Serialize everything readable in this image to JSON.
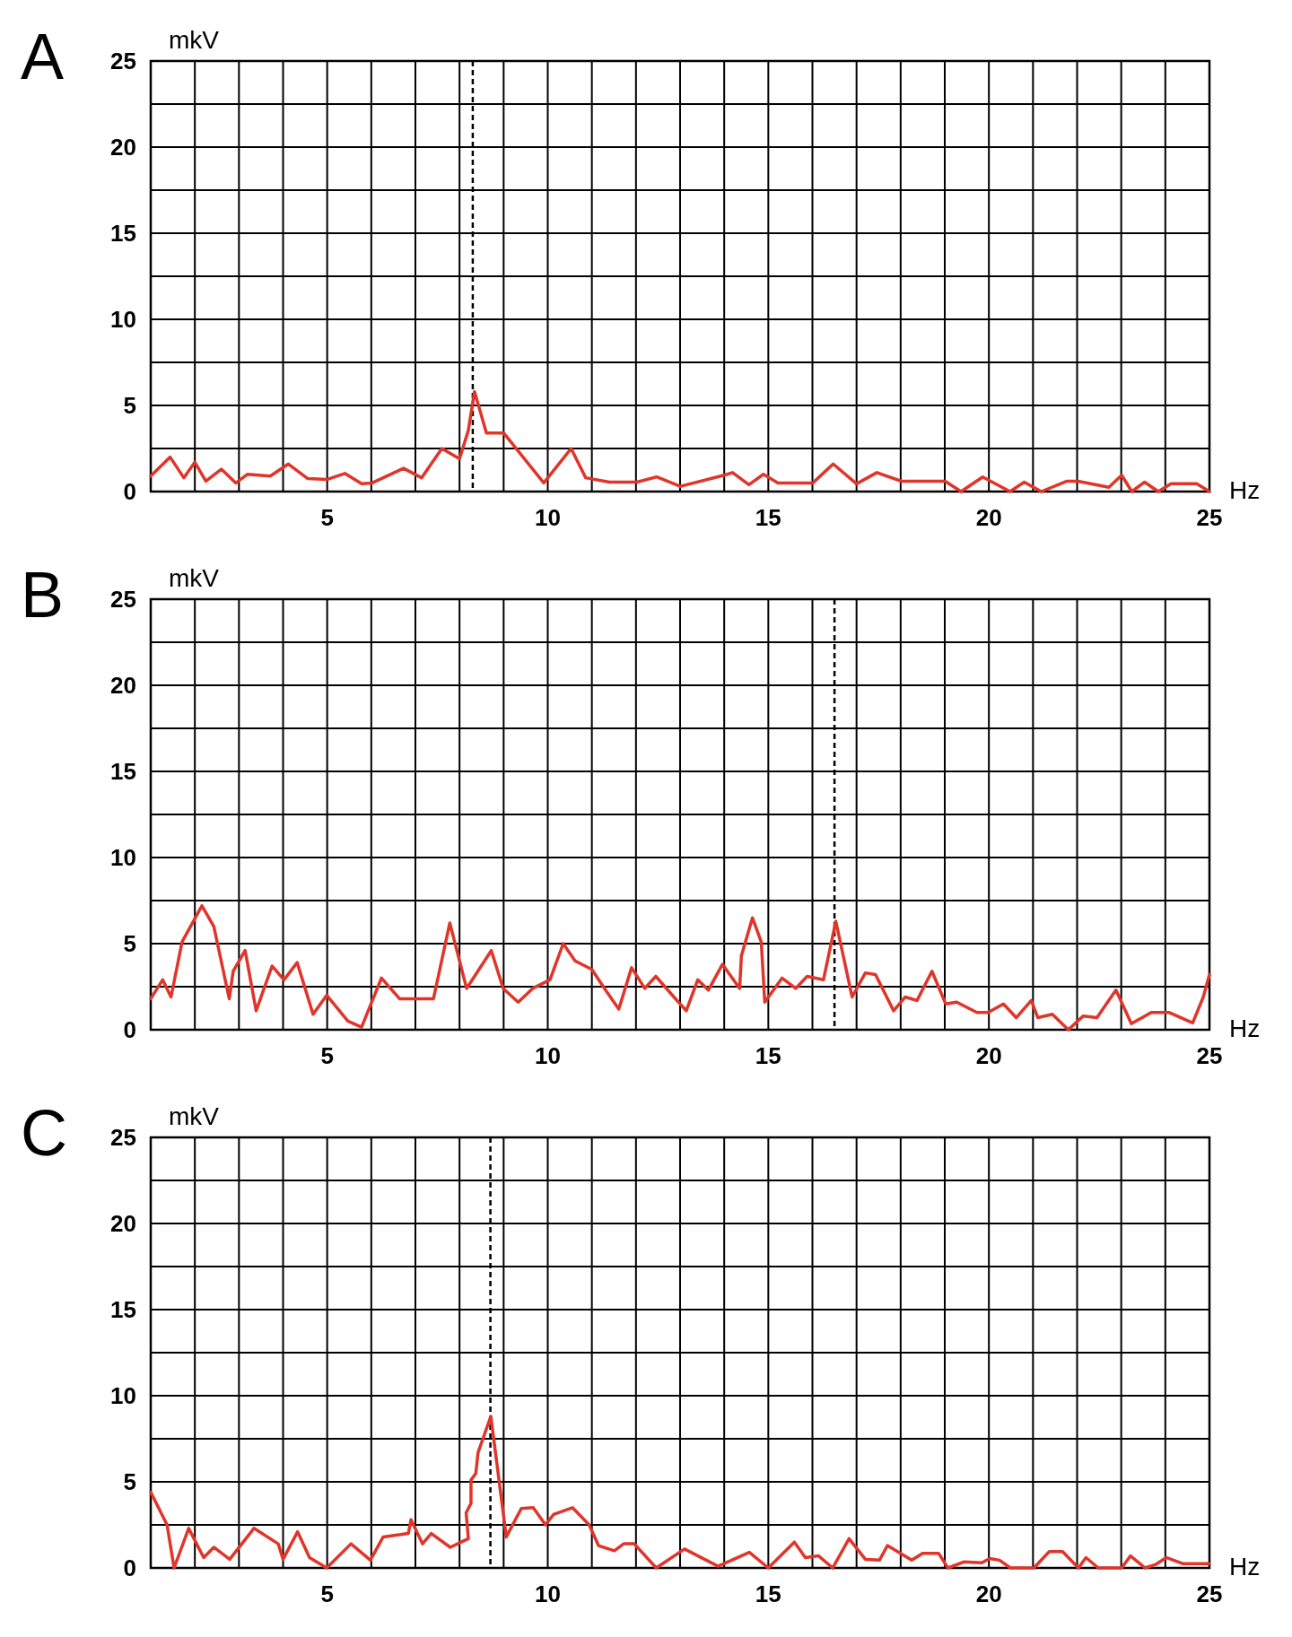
{
  "chart_data": [
    {
      "type": "line",
      "title": "A",
      "xlabel": "Hz",
      "ylabel": "mkV",
      "xlim": [
        1,
        25
      ],
      "ylim": [
        0,
        25
      ],
      "grid": true,
      "xticks": [
        {
          "value": 1,
          "label": null
        },
        {
          "value": 2,
          "label": null
        },
        {
          "value": 3,
          "label": null
        },
        {
          "value": 4,
          "label": null
        },
        5,
        {
          "value": 6,
          "label": null
        },
        {
          "value": 7,
          "label": null
        },
        {
          "value": 8,
          "label": null
        },
        {
          "value": 9,
          "label": null
        },
        10,
        {
          "value": 11,
          "label": null
        },
        {
          "value": 12,
          "label": null
        },
        {
          "value": 13,
          "label": null
        },
        {
          "value": 14,
          "label": null
        },
        15,
        {
          "value": 16,
          "label": null
        },
        {
          "value": 17,
          "label": null
        },
        {
          "value": 18,
          "label": null
        },
        {
          "value": 19,
          "label": null
        },
        20,
        {
          "value": 21,
          "label": null
        },
        {
          "value": 22,
          "label": null
        },
        {
          "value": 23,
          "label": null
        },
        {
          "value": 24,
          "label": null
        },
        25
      ],
      "yticks": [
        0,
        {
          "value": 2.5,
          "label": null
        },
        5,
        {
          "value": 7.5,
          "label": null
        },
        10,
        {
          "value": 12.5,
          "label": null
        },
        15,
        {
          "value": 17.5,
          "label": null
        },
        20,
        {
          "value": 22.5,
          "label": null
        },
        25
      ],
      "ref_lines": [
        {
          "axis": "x",
          "value": 8.3,
          "line_style": "dashed",
          "color": "#000000"
        }
      ],
      "series": [
        {
          "color": "#e0352a",
          "x": [
            1,
            1.44,
            1.75,
            2.0,
            2.25,
            2.6,
            2.93,
            3.19,
            3.71,
            4.12,
            4.56,
            4.99,
            5.4,
            5.78,
            6.02,
            6.73,
            7.14,
            7.6,
            8.0,
            8.2,
            8.34,
            8.61,
            9.0,
            9.91,
            10.53,
            10.86,
            11.4,
            12.02,
            12.47,
            13.0,
            14.0,
            14.19,
            14.56,
            14.89,
            15.22,
            16.01,
            16.47,
            17.0,
            17.46,
            18.02,
            19.01,
            19.37,
            19.86,
            20.48,
            20.8,
            21.19,
            21.77,
            22.02,
            22.72,
            23.01,
            23.24,
            23.53,
            23.84,
            24.13,
            24.71,
            25
          ],
          "values": [
            0.9,
            2.0,
            0.8,
            1.7,
            0.6,
            1.3,
            0.5,
            1.0,
            0.9,
            1.6,
            0.75,
            0.7,
            1.05,
            0.45,
            0.5,
            1.35,
            0.8,
            2.5,
            1.9,
            3.55,
            5.8,
            3.4,
            3.4,
            0.5,
            2.5,
            0.8,
            0.55,
            0.55,
            0.85,
            0.3,
            0.95,
            1.1,
            0.4,
            1.0,
            0.5,
            0.5,
            1.6,
            0.45,
            1.1,
            0.6,
            0.6,
            0,
            0.85,
            0,
            0.55,
            0,
            0.6,
            0.6,
            0.25,
            0.95,
            0,
            0.55,
            0,
            0.45,
            0.45,
            0
          ]
        }
      ]
    },
    {
      "type": "line",
      "title": "B",
      "xlabel": "Hz",
      "ylabel": "mkV",
      "xlim": [
        1,
        25
      ],
      "ylim": [
        0,
        25
      ],
      "grid": true,
      "xticks": [
        {
          "value": 1,
          "label": null
        },
        {
          "value": 2,
          "label": null
        },
        {
          "value": 3,
          "label": null
        },
        {
          "value": 4,
          "label": null
        },
        5,
        {
          "value": 6,
          "label": null
        },
        {
          "value": 7,
          "label": null
        },
        {
          "value": 8,
          "label": null
        },
        {
          "value": 9,
          "label": null
        },
        10,
        {
          "value": 11,
          "label": null
        },
        {
          "value": 12,
          "label": null
        },
        {
          "value": 13,
          "label": null
        },
        {
          "value": 14,
          "label": null
        },
        15,
        {
          "value": 16,
          "label": null
        },
        {
          "value": 17,
          "label": null
        },
        {
          "value": 18,
          "label": null
        },
        {
          "value": 19,
          "label": null
        },
        20,
        {
          "value": 21,
          "label": null
        },
        {
          "value": 22,
          "label": null
        },
        {
          "value": 23,
          "label": null
        },
        {
          "value": 24,
          "label": null
        },
        25
      ],
      "yticks": [
        0,
        {
          "value": 2.5,
          "label": null
        },
        5,
        {
          "value": 7.5,
          "label": null
        },
        10,
        {
          "value": 12.5,
          "label": null
        },
        15,
        {
          "value": 17.5,
          "label": null
        },
        20,
        {
          "value": 22.5,
          "label": null
        },
        25
      ],
      "ref_lines": [
        {
          "axis": "x",
          "value": 16.5,
          "line_style": "dashed",
          "color": "#000000"
        }
      ],
      "series": [
        {
          "color": "#e0352a",
          "x": [
            1,
            1.27,
            1.46,
            1.71,
            2.16,
            2.43,
            2.78,
            2.87,
            3.14,
            3.39,
            3.75,
            4.02,
            4.32,
            4.68,
            4.99,
            5.47,
            5.78,
            6.23,
            6.64,
            7.41,
            7.78,
            8.16,
            8.72,
            8.99,
            9.33,
            9.66,
            10.05,
            10.35,
            10.62,
            11.0,
            11.31,
            11.61,
            11.9,
            12.2,
            12.45,
            12.86,
            13.14,
            13.4,
            13.64,
            13.96,
            14.35,
            14.39,
            14.64,
            14.84,
            14.92,
            15.31,
            15.62,
            15.88,
            16.25,
            16.53,
            16.9,
            17.2,
            17.43,
            17.84,
            18.1,
            18.37,
            18.71,
            19.02,
            19.27,
            19.73,
            19.98,
            20.33,
            20.62,
            20.96,
            21.11,
            21.44,
            21.8,
            22.14,
            22.45,
            22.88,
            23.23,
            23.68,
            24.09,
            24.62,
            24.86,
            25
          ],
          "values": [
            1.8,
            2.9,
            1.9,
            5.1,
            7.2,
            6.0,
            1.8,
            3.4,
            4.6,
            1.1,
            3.7,
            2.9,
            3.9,
            0.9,
            2.0,
            0.5,
            0.15,
            3.0,
            1.8,
            1.8,
            6.2,
            2.4,
            4.6,
            2.4,
            1.6,
            2.4,
            2.9,
            5.0,
            4.0,
            3.5,
            2.3,
            1.2,
            3.6,
            2.4,
            3.1,
            1.9,
            1.1,
            2.9,
            2.3,
            3.8,
            2.4,
            4.3,
            6.5,
            5.1,
            1.6,
            3.0,
            2.4,
            3.1,
            2.9,
            6.3,
            1.9,
            3.3,
            3.2,
            1.1,
            1.9,
            1.7,
            3.4,
            1.5,
            1.6,
            1.0,
            1.0,
            1.5,
            0.7,
            1.7,
            0.7,
            0.9,
            0,
            0.8,
            0.7,
            2.3,
            0.35,
            1.0,
            1.0,
            0.4,
            1.9,
            3.2
          ]
        }
      ]
    },
    {
      "type": "line",
      "title": "C",
      "xlabel": "Hz",
      "ylabel": "mkV",
      "xlim": [
        1,
        25
      ],
      "ylim": [
        0,
        25
      ],
      "grid": true,
      "xticks": [
        {
          "value": 1,
          "label": null
        },
        {
          "value": 2,
          "label": null
        },
        {
          "value": 3,
          "label": null
        },
        {
          "value": 4,
          "label": null
        },
        5,
        {
          "value": 6,
          "label": null
        },
        {
          "value": 7,
          "label": null
        },
        {
          "value": 8,
          "label": null
        },
        {
          "value": 9,
          "label": null
        },
        10,
        {
          "value": 11,
          "label": null
        },
        {
          "value": 12,
          "label": null
        },
        {
          "value": 13,
          "label": null
        },
        {
          "value": 14,
          "label": null
        },
        15,
        {
          "value": 16,
          "label": null
        },
        {
          "value": 17,
          "label": null
        },
        {
          "value": 18,
          "label": null
        },
        {
          "value": 19,
          "label": null
        },
        20,
        {
          "value": 21,
          "label": null
        },
        {
          "value": 22,
          "label": null
        },
        {
          "value": 23,
          "label": null
        },
        {
          "value": 24,
          "label": null
        },
        25
      ],
      "yticks": [
        0,
        {
          "value": 2.5,
          "label": null
        },
        5,
        {
          "value": 7.5,
          "label": null
        },
        10,
        {
          "value": 12.5,
          "label": null
        },
        15,
        {
          "value": 17.5,
          "label": null
        },
        20,
        {
          "value": 22.5,
          "label": null
        },
        25
      ],
      "ref_lines": [
        {
          "axis": "x",
          "value": 8.7,
          "line_style": "dashed",
          "color": "#000000"
        }
      ],
      "series": [
        {
          "color": "#e0352a",
          "x": [
            1,
            1.37,
            1.53,
            1.86,
            2.2,
            2.43,
            2.79,
            3.34,
            3.89,
            4.0,
            4.33,
            4.6,
            4.99,
            5.54,
            5.98,
            6.27,
            6.84,
            6.9,
            7.16,
            7.36,
            7.79,
            8.2,
            8.15,
            8.26,
            8.26,
            8.37,
            8.42,
            8.71,
            9.06,
            9.4,
            9.67,
            9.95,
            10.13,
            10.56,
            10.94,
            11.15,
            11.51,
            11.72,
            11.96,
            12.46,
            13.1,
            13.86,
            14.57,
            15,
            15.59,
            15.84,
            16.14,
            16.46,
            16.83,
            17.2,
            17.52,
            17.7,
            18.25,
            18.5,
            18.86,
            19.07,
            19.43,
            19.84,
            20.02,
            20.24,
            20.49,
            21.02,
            21.37,
            21.67,
            22.03,
            22.2,
            22.48,
            23.01,
            23.21,
            23.54,
            23.78,
            24.02,
            24.39,
            25
          ],
          "values": [
            4.4,
            2.5,
            0,
            2.3,
            0.6,
            1.2,
            0.5,
            2.3,
            1.4,
            0.5,
            2.1,
            0.6,
            0,
            1.4,
            0.45,
            1.8,
            2.0,
            2.8,
            1.4,
            2.0,
            1.2,
            1.7,
            3.2,
            3.75,
            5.1,
            5.5,
            6.7,
            8.8,
            1.8,
            3.45,
            3.5,
            2.5,
            3.1,
            3.5,
            2.5,
            1.3,
            1.0,
            1.4,
            1.4,
            0,
            1.1,
            0.1,
            0.9,
            0,
            1.5,
            0.6,
            0.7,
            0,
            1.7,
            0.5,
            0.45,
            1.3,
            0.45,
            0.85,
            0.85,
            0,
            0.35,
            0.3,
            0.55,
            0.45,
            0,
            0,
            0.95,
            0.95,
            0,
            0.6,
            0,
            0,
            0.7,
            0,
            0.2,
            0.6,
            0.25,
            0.25
          ]
        }
      ]
    }
  ]
}
